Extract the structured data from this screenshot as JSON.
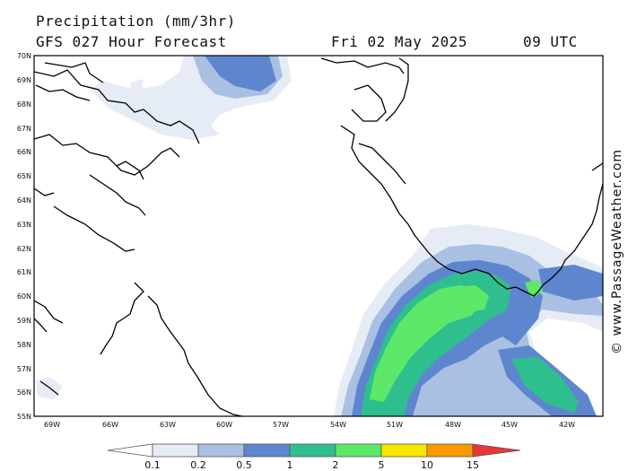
{
  "header": {
    "title": "Precipitation (mm/3hr)",
    "model": "GFS 027 Hour Forecast",
    "date": "Fri 02 May 2025",
    "time": "09 UTC"
  },
  "credit": "© www.PassageWeather.com",
  "map": {
    "lat_labels": [
      "70N",
      "69N",
      "68N",
      "67N",
      "66N",
      "65N",
      "64N",
      "63N",
      "62N",
      "61N",
      "60N",
      "59N",
      "58N",
      "57N",
      "56N",
      "55N"
    ],
    "lon_labels": [
      "69W",
      "66W",
      "63W",
      "60W",
      "57W",
      "54W",
      "51W",
      "48W",
      "45W",
      "42W"
    ]
  },
  "legend": {
    "ticks": [
      "0.1",
      "0.2",
      "0.5",
      "1",
      "2",
      "5",
      "10",
      "15"
    ],
    "colors": [
      "#e6ecf6",
      "#a9c0e2",
      "#5e86cf",
      "#2fbf8e",
      "#5de86a",
      "#f7e600",
      "#f79a00",
      "#e8353a"
    ]
  }
}
